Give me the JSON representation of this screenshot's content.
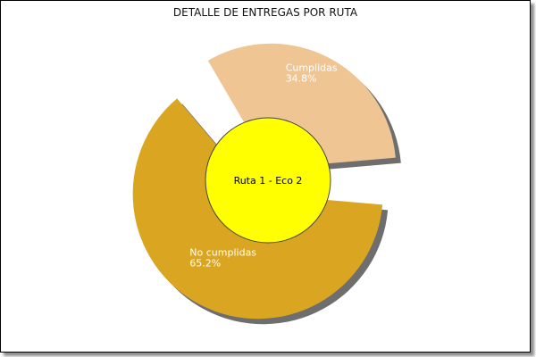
{
  "chart_data": {
    "type": "pie",
    "title": "DETALLE DE ENTREGAS POR RUTA",
    "center_label": "Ruta 1 - Eco 2",
    "slices": [
      {
        "label": "Cumplidas",
        "percent_label": "34.8%",
        "value": 34.8,
        "color": "#F0C594"
      },
      {
        "label": "No cumplidas",
        "percent_label": "65.2%",
        "value": 65.2,
        "color": "#DAA520"
      }
    ],
    "legend": "none",
    "center_color": "#FFFF00",
    "shadow_color": "#6E6E6E"
  }
}
